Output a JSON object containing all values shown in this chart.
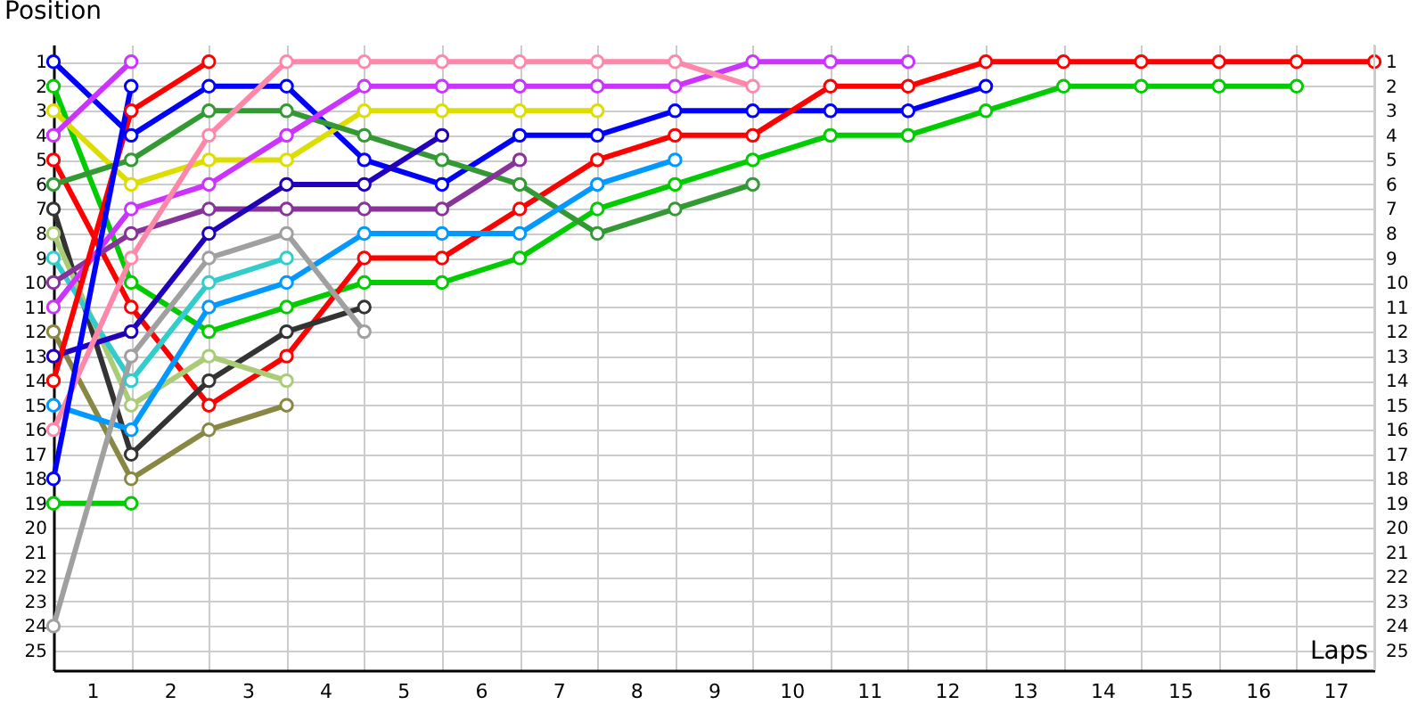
{
  "chart_data": {
    "type": "line",
    "ylabel": "Position",
    "xlabel": "Laps",
    "xlim": [
      0,
      17
    ],
    "xticks": [
      {
        "value": 0,
        "label": null
      },
      {
        "value": 0.5,
        "label": "1"
      },
      {
        "value": 1,
        "label": null
      },
      {
        "value": 1.5,
        "label": "2"
      },
      {
        "value": 2,
        "label": null
      },
      {
        "value": 2.5,
        "label": "3"
      },
      {
        "value": 3,
        "label": null
      },
      {
        "value": 3.5,
        "label": "4"
      },
      {
        "value": 4,
        "label": null
      },
      {
        "value": 4.5,
        "label": "5"
      },
      {
        "value": 5,
        "label": null
      },
      {
        "value": 5.5,
        "label": "6"
      },
      {
        "value": 6,
        "label": null
      },
      {
        "value": 6.5,
        "label": "7"
      },
      {
        "value": 7,
        "label": null
      },
      {
        "value": 7.5,
        "label": "8"
      },
      {
        "value": 8,
        "label": null
      },
      {
        "value": 8.5,
        "label": "9"
      },
      {
        "value": 9,
        "label": null
      },
      {
        "value": 9.5,
        "label": "10"
      },
      {
        "value": 10,
        "label": null
      },
      {
        "value": 10.5,
        "label": "11"
      },
      {
        "value": 11,
        "label": null
      },
      {
        "value": 11.5,
        "label": "12"
      },
      {
        "value": 12,
        "label": null
      },
      {
        "value": 12.5,
        "label": "13"
      },
      {
        "value": 13,
        "label": null
      },
      {
        "value": 13.5,
        "label": "14"
      },
      {
        "value": 14,
        "label": null
      },
      {
        "value": 14.5,
        "label": "15"
      },
      {
        "value": 15,
        "label": null
      },
      {
        "value": 15.5,
        "label": "16"
      },
      {
        "value": 16,
        "label": null
      },
      {
        "value": 16.5,
        "label": "17"
      },
      {
        "value": 17,
        "label": null
      }
    ],
    "ylim": [
      25.8,
      0.3
    ],
    "yticks": [
      1,
      2,
      3,
      4,
      5,
      6,
      7,
      8,
      9,
      10,
      11,
      12,
      13,
      14,
      15,
      16,
      17,
      18,
      19,
      20,
      21,
      22,
      23,
      24,
      25
    ],
    "y2lim": [
      25.8,
      0.3
    ],
    "y2ticks": [
      1,
      2,
      3,
      4,
      5,
      6,
      7,
      8,
      9,
      10,
      11,
      12,
      13,
      14,
      15,
      16,
      17,
      18,
      19,
      20,
      21,
      22,
      23,
      24,
      25
    ],
    "grid": true,
    "legend": false,
    "marker": "circle",
    "line_style": "solid",
    "x": [
      0,
      1,
      2,
      3,
      4,
      5,
      6,
      7,
      8,
      9,
      10,
      11,
      12,
      13,
      14,
      15,
      16,
      17
    ],
    "series": [
      {
        "color": "#0000ff",
        "values": [
          1,
          4,
          2,
          2,
          5,
          6,
          4,
          4,
          3,
          3,
          3,
          3,
          2,
          null,
          null,
          null,
          null,
          null
        ]
      },
      {
        "color": "#00cc00",
        "values": [
          2,
          10,
          12,
          11,
          10,
          10,
          9,
          7,
          6,
          5,
          4,
          4,
          3,
          2,
          2,
          2,
          2,
          null
        ]
      },
      {
        "color": "#dddd00",
        "values": [
          3,
          6,
          5,
          5,
          3,
          3,
          3,
          3,
          null,
          null,
          null,
          null,
          null,
          null,
          null,
          null,
          null,
          null
        ]
      },
      {
        "color": "#cc33ff",
        "values": [
          4,
          1,
          null,
          null,
          null,
          null,
          null,
          null,
          null,
          null,
          null,
          null,
          null,
          null,
          null,
          null,
          null,
          null
        ]
      },
      {
        "color": "#ff0000",
        "values": [
          5,
          11,
          15,
          13,
          9,
          9,
          7,
          5,
          4,
          4,
          2,
          2,
          1,
          1,
          1,
          1,
          1,
          1
        ]
      },
      {
        "color": "#339933",
        "values": [
          6,
          5,
          3,
          3,
          4,
          5,
          6,
          8,
          7,
          6,
          null,
          null,
          null,
          null,
          null,
          null,
          null,
          null
        ]
      },
      {
        "color": "#333333",
        "values": [
          7,
          17,
          14,
          12,
          11,
          null,
          null,
          null,
          null,
          null,
          null,
          null,
          null,
          null,
          null,
          null,
          null,
          null
        ]
      },
      {
        "color": "#aacc77",
        "values": [
          8,
          15,
          13,
          14,
          null,
          null,
          null,
          null,
          null,
          null,
          null,
          null,
          null,
          null,
          null,
          null,
          null,
          null
        ]
      },
      {
        "color": "#33cccc",
        "values": [
          9,
          14,
          10,
          9,
          null,
          null,
          null,
          null,
          null,
          null,
          null,
          null,
          null,
          null,
          null,
          null,
          null,
          null
        ]
      },
      {
        "color": "#883399",
        "values": [
          10,
          8,
          7,
          7,
          7,
          7,
          5,
          null,
          null,
          null,
          null,
          null,
          null,
          null,
          null,
          null,
          null,
          null
        ]
      },
      {
        "color": "#cc33ff",
        "values": [
          11,
          7,
          6,
          4,
          2,
          2,
          2,
          2,
          2,
          1,
          1,
          1,
          null,
          null,
          null,
          null,
          null,
          null
        ]
      },
      {
        "color": "#888844",
        "values": [
          12,
          18,
          16,
          15,
          null,
          null,
          null,
          null,
          null,
          null,
          null,
          null,
          null,
          null,
          null,
          null,
          null,
          null
        ]
      },
      {
        "color": "#2200bb",
        "values": [
          13,
          12,
          8,
          6,
          6,
          4,
          null,
          null,
          null,
          null,
          null,
          null,
          null,
          null,
          null,
          null,
          null,
          null
        ]
      },
      {
        "color": "#ff0000",
        "values": [
          14,
          3,
          1,
          null,
          null,
          null,
          null,
          null,
          null,
          null,
          null,
          null,
          null,
          null,
          null,
          null,
          null,
          null
        ]
      },
      {
        "color": "#0099ff",
        "values": [
          15,
          16,
          11,
          10,
          8,
          8,
          8,
          6,
          5,
          null,
          null,
          null,
          null,
          null,
          null,
          null,
          null,
          null
        ]
      },
      {
        "color": "#ff88aa",
        "values": [
          16,
          9,
          4,
          1,
          1,
          1,
          1,
          1,
          1,
          2,
          null,
          null,
          null,
          null,
          null,
          null,
          null,
          null
        ]
      },
      {
        "color": "#0000ff",
        "values": [
          18,
          2,
          null,
          null,
          null,
          null,
          null,
          null,
          null,
          null,
          null,
          null,
          null,
          null,
          null,
          null,
          null,
          null
        ]
      },
      {
        "color": "#00cc00",
        "values": [
          19,
          19,
          null,
          null,
          null,
          null,
          null,
          null,
          null,
          null,
          null,
          null,
          null,
          null,
          null,
          null,
          null,
          null
        ]
      },
      {
        "color": "#a0a0a0",
        "values": [
          24,
          13,
          9,
          8,
          12,
          null,
          null,
          null,
          null,
          null,
          null,
          null,
          null,
          null,
          null,
          null,
          null,
          null
        ]
      }
    ]
  }
}
